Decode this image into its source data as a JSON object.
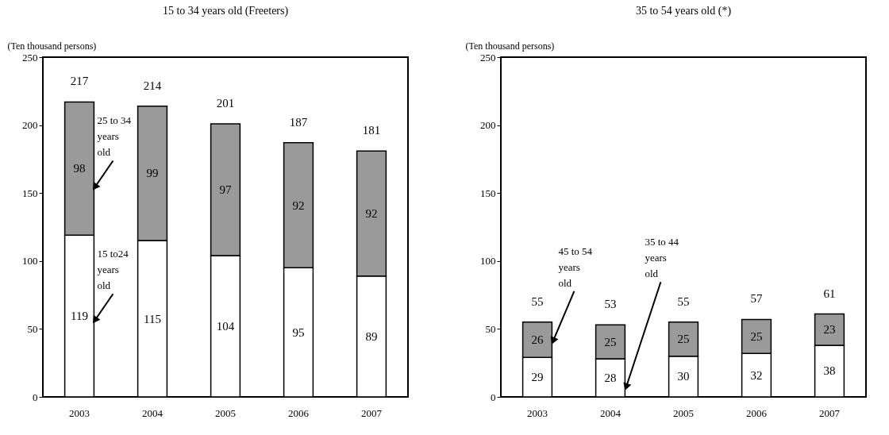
{
  "chart_data": [
    {
      "type": "bar",
      "stacked": true,
      "title": "15 to 34 years old (Freeters)",
      "ylabel": "(Ten thousand persons)",
      "categories": [
        "2003",
        "2004",
        "2005",
        "2006",
        "2007"
      ],
      "series": [
        {
          "name": "15 to24 years old",
          "color": "#ffffff",
          "values": [
            119,
            115,
            104,
            95,
            89
          ]
        },
        {
          "name": "25 to 34 years old",
          "color": "#9a9a9a",
          "values": [
            98,
            99,
            97,
            92,
            92
          ]
        }
      ],
      "totals": [
        "217",
        "214",
        "201",
        "187",
        "181"
      ],
      "data_labels": true,
      "ylim": [
        0,
        250
      ],
      "yticks": [
        0,
        50,
        100,
        150,
        200,
        250
      ],
      "grid": false,
      "legend": false
    },
    {
      "type": "bar",
      "stacked": true,
      "title": "35 to 54 years old (*)",
      "ylabel": "(Ten thousand persons)",
      "categories": [
        "2003",
        "2004",
        "2005",
        "2006",
        "2007"
      ],
      "series": [
        {
          "name": "35 to 44 years old",
          "color": "#ffffff",
          "values": [
            29,
            28,
            30,
            32,
            38
          ]
        },
        {
          "name": "45 to 54 years old",
          "color": "#9a9a9a",
          "values": [
            26,
            25,
            25,
            25,
            23
          ]
        }
      ],
      "totals": [
        "55",
        "53",
        "55",
        "57",
        "61"
      ],
      "data_labels": true,
      "ylim": [
        0,
        250
      ],
      "yticks": [
        0,
        50,
        100,
        150,
        200,
        250
      ],
      "grid": false,
      "legend": false
    }
  ]
}
